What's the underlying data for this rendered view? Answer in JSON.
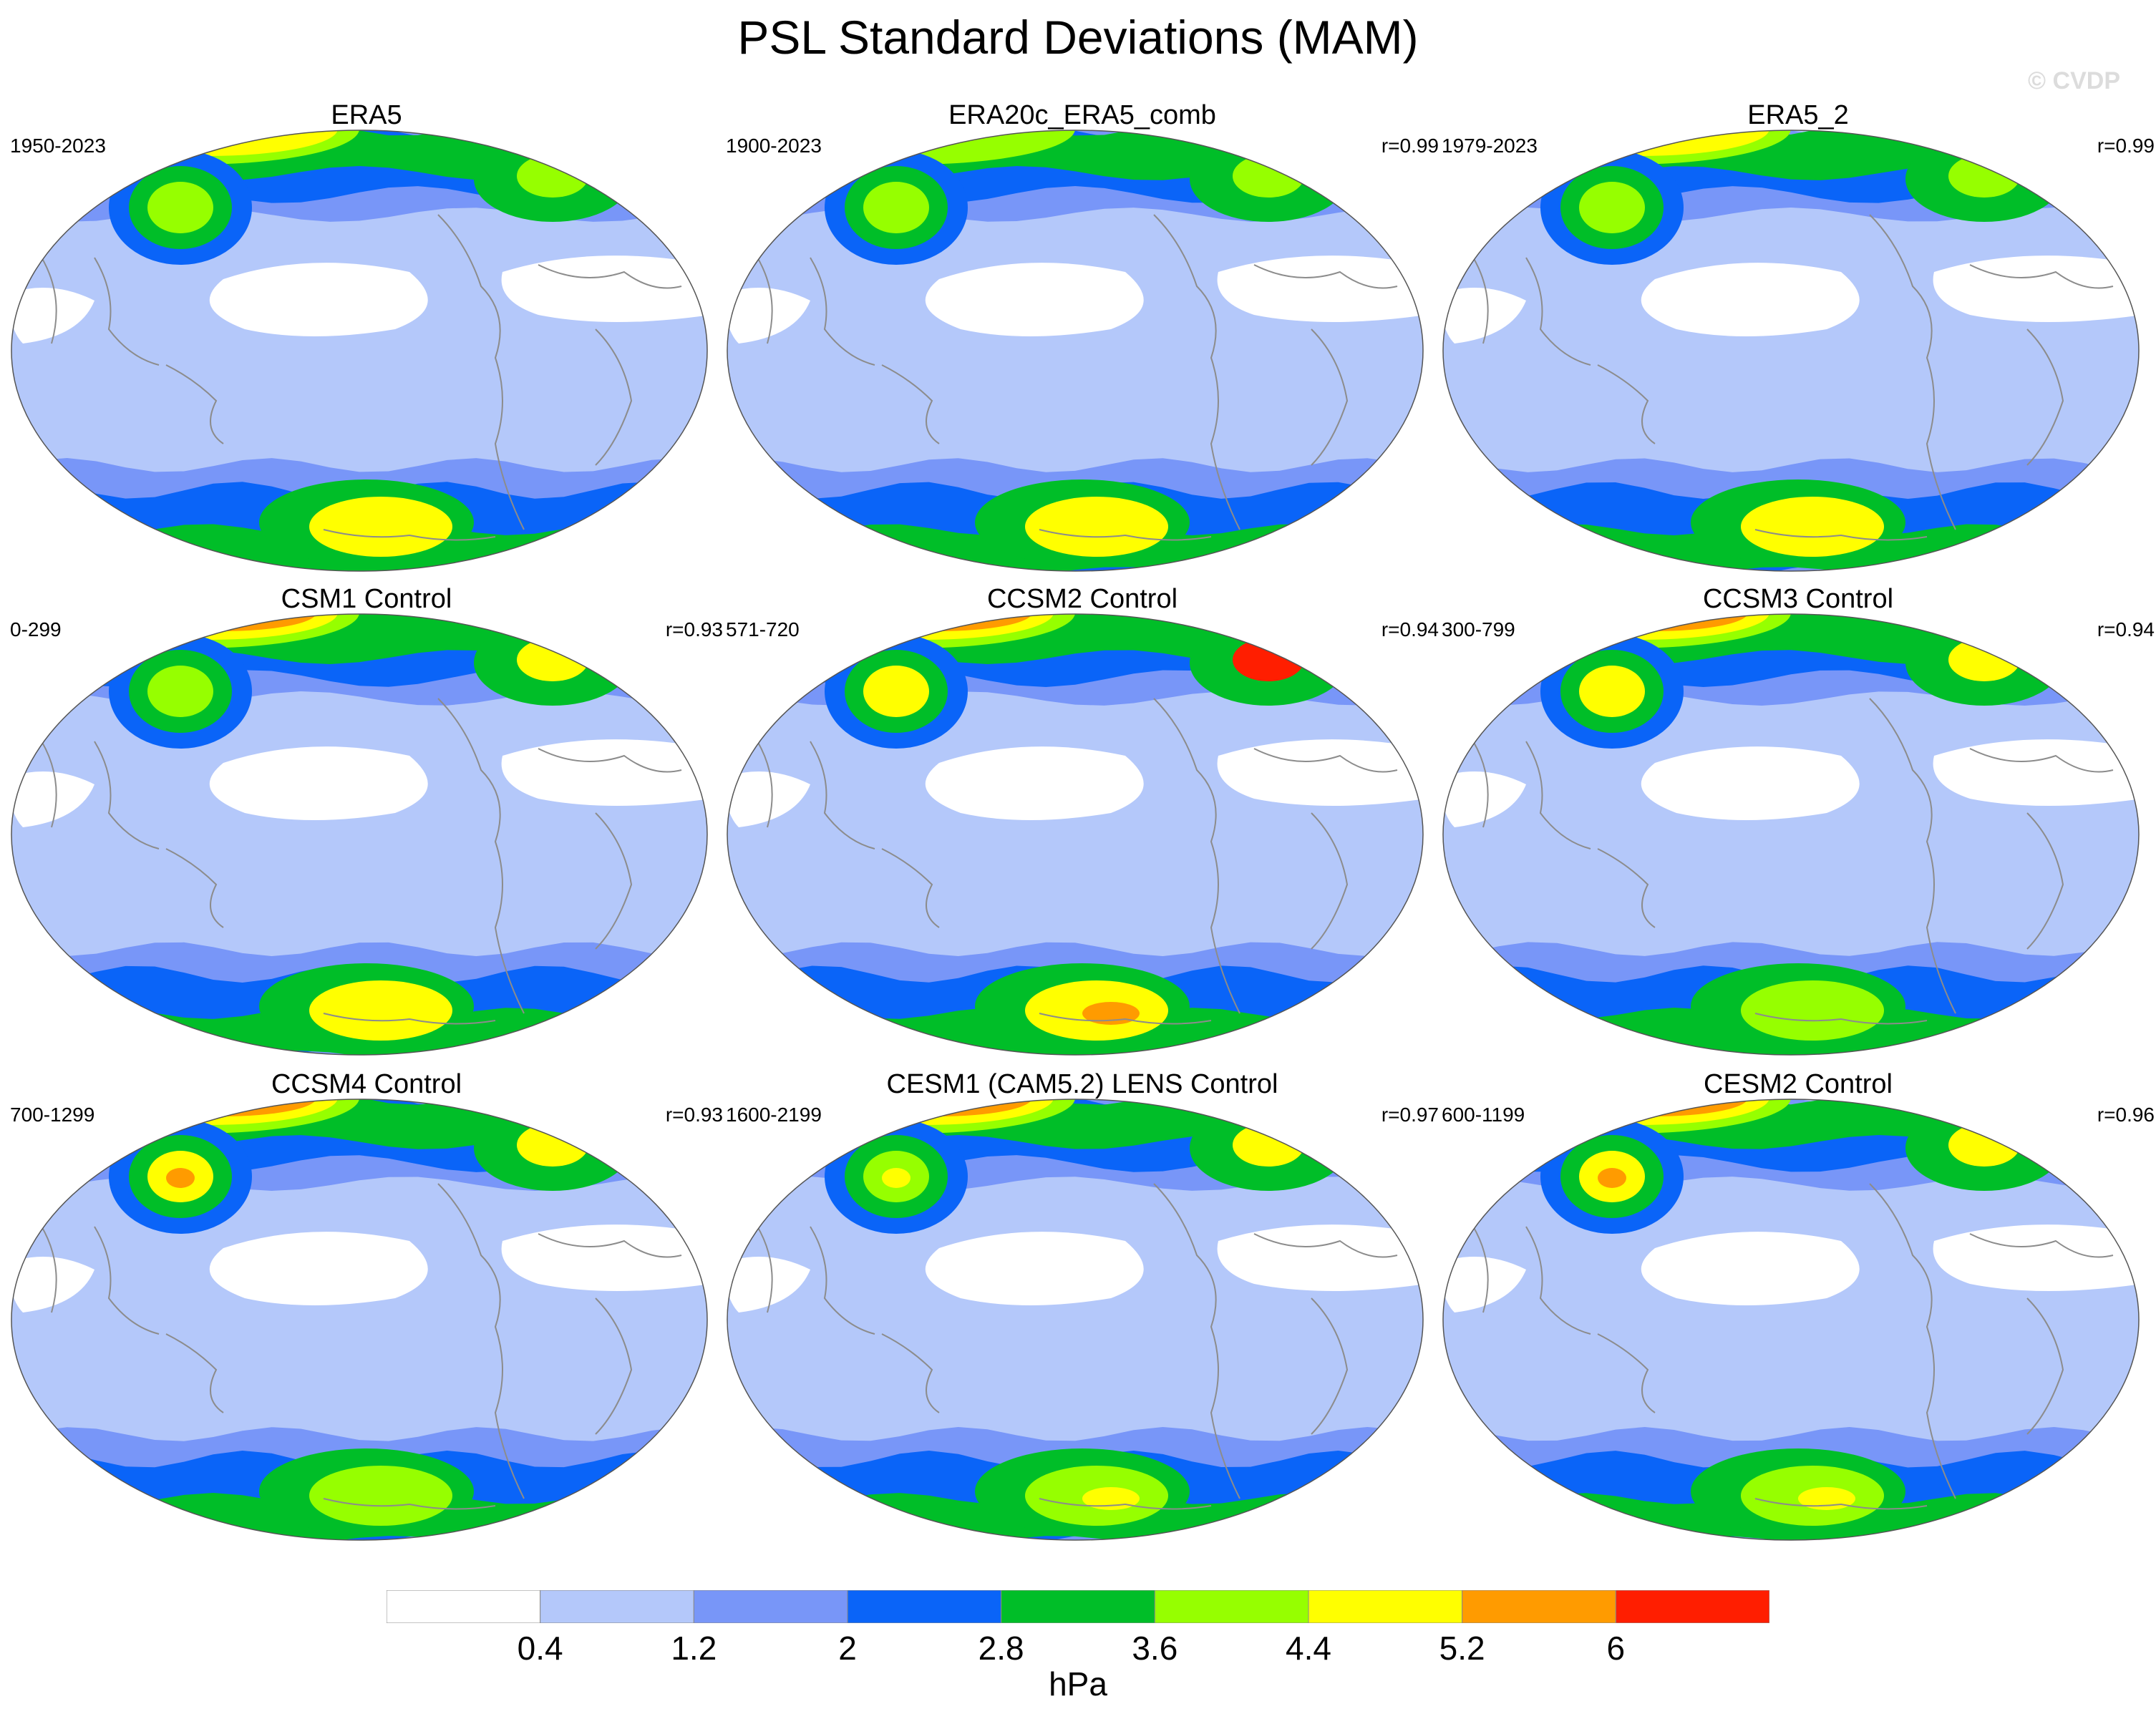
{
  "figure": {
    "title": "PSL Standard Deviations (MAM)",
    "watermark": "© CVDP",
    "units": "hPa"
  },
  "colors": {
    "levels": [
      "#ffffff",
      "#b4c8fa",
      "#7896f8",
      "#0a64f8",
      "#00be28",
      "#96ff00",
      "#ffff00",
      "#ff9b00",
      "#ff1e00"
    ],
    "coast": "#8c8c8c"
  },
  "colorbar": {
    "labels": [
      "0.4",
      "1.2",
      "2",
      "2.8",
      "3.6",
      "4.4",
      "5.2",
      "6"
    ]
  },
  "panels": [
    {
      "title": "ERA5",
      "years": "1950-2023",
      "corr": "",
      "north_level": 6,
      "np_blob": 5,
      "np_core": 5,
      "south_level": 6,
      "south_core": 6,
      "euro_peak": 5
    },
    {
      "title": "ERA20c_ERA5_comb",
      "years": "1900-2023",
      "corr": "r=0.99",
      "north_level": 5,
      "np_blob": 5,
      "np_core": 5,
      "south_level": 6,
      "south_core": 6,
      "euro_peak": 5
    },
    {
      "title": "ERA5_2",
      "years": "1979-2023",
      "corr": "r=0.99",
      "north_level": 6,
      "np_blob": 5,
      "np_core": 5,
      "south_level": 6,
      "south_core": 6,
      "euro_peak": 5
    },
    {
      "title": "CSM1 Control",
      "years": "0-299",
      "corr": "r=0.93",
      "north_level": 7,
      "np_blob": 5,
      "np_core": 5,
      "south_level": 6,
      "south_core": 6,
      "euro_peak": 6
    },
    {
      "title": "CCSM2 Control",
      "years": "571-720",
      "corr": "r=0.94",
      "north_level": 7,
      "np_blob": 6,
      "np_core": 6,
      "south_level": 6,
      "south_core": 7,
      "euro_peak": 8
    },
    {
      "title": "CCSM3 Control",
      "years": "300-799",
      "corr": "r=0.94",
      "north_level": 8,
      "np_blob": 6,
      "np_core": 6,
      "south_level": 5,
      "south_core": 5,
      "euro_peak": 6
    },
    {
      "title": "CCSM4 Control",
      "years": "700-1299",
      "corr": "r=0.93",
      "north_level": 8,
      "np_blob": 6,
      "np_core": 7,
      "south_level": 5,
      "south_core": 5,
      "euro_peak": 6
    },
    {
      "title": "CESM1 (CAM5.2) LENS Control",
      "years": "1600-2199",
      "corr": "r=0.97",
      "north_level": 8,
      "np_blob": 5,
      "np_core": 6,
      "south_level": 5,
      "south_core": 6,
      "euro_peak": 6
    },
    {
      "title": "CESM2 Control",
      "years": "600-1199",
      "corr": "r=0.96",
      "north_level": 8,
      "np_blob": 6,
      "np_core": 7,
      "south_level": 5,
      "south_core": 6,
      "euro_peak": 6
    }
  ]
}
